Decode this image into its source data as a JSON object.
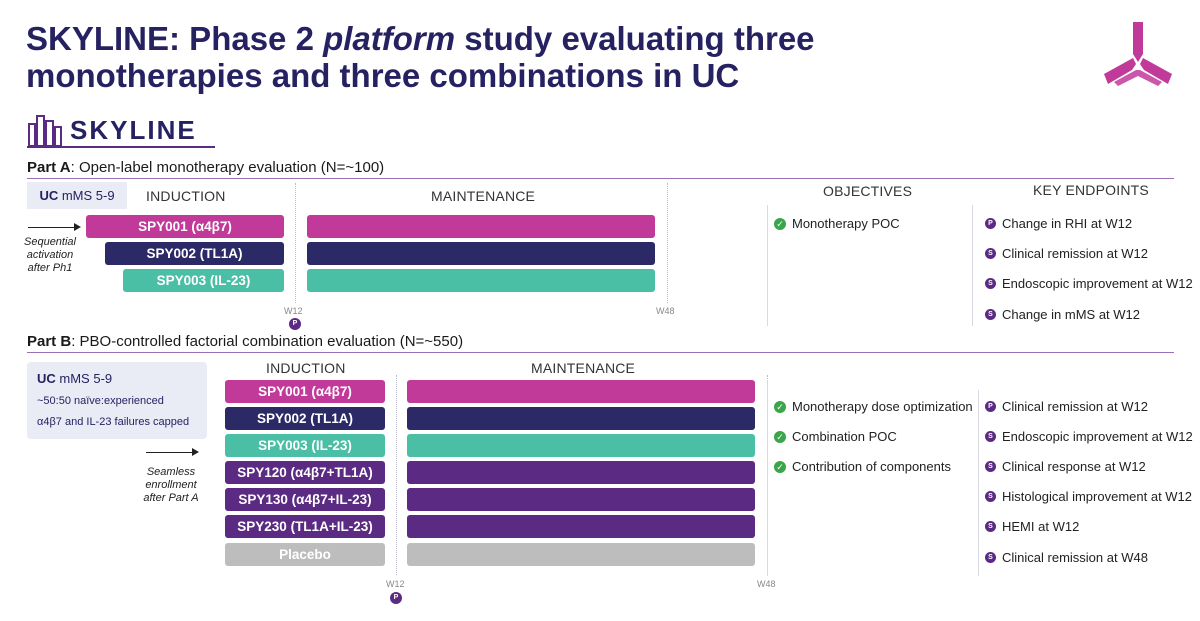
{
  "title": {
    "prefix": "SKYLINE: Phase 2 ",
    "italic": "platform",
    "suffix": " study evaluating three monotherapies and three combinations in UC"
  },
  "brand": {
    "study_logo_text": "SKYLINE"
  },
  "colors": {
    "magenta": "#c13a9a",
    "navy": "#2b2a66",
    "teal": "#4bbfa6",
    "purple": "#5b2a82",
    "gray": "#bdbdbd",
    "check": "#3aa64c"
  },
  "part_a": {
    "label_bold": "Part A",
    "label_rest": ": Open-label monotherapy evaluation (N=~100)",
    "uc_bold": "UC",
    "uc_rest": " mMS 5-9",
    "induction_header": "INDUCTION",
    "maintenance_header": "MAINTENANCE",
    "objectives_header": "OBJECTIVES",
    "endpoints_header": "KEY ENDPOINTS",
    "note": [
      "Sequential",
      "activation",
      "after Ph1"
    ],
    "arms": [
      {
        "label": "SPY001 (α4β7)",
        "color": "magenta"
      },
      {
        "label": "SPY002 (TL1A)",
        "color": "navy"
      },
      {
        "label": "SPY003 (IL-23)",
        "color": "teal"
      }
    ],
    "week_start": "W12",
    "week_end": "W48",
    "badge": "P",
    "objectives": [
      "Monotherapy POC"
    ],
    "endpoints": [
      {
        "badge": "P",
        "text": "Change in RHI at W12"
      },
      {
        "badge": "S",
        "text": "Clinical remission at W12"
      },
      {
        "badge": "S",
        "text": "Endoscopic improvement at W12"
      },
      {
        "badge": "S",
        "text": "Change in mMS at W12"
      }
    ]
  },
  "part_b": {
    "label_bold": "Part B",
    "label_rest": ": PBO-controlled factorial combination evaluation (N=~550)",
    "uc_bold": "UC",
    "uc_rest": " mMS 5-9",
    "uc_line2": "~50:50 naïve:experienced",
    "uc_line3": "α4β7 and IL-23 failures capped",
    "induction_header": "INDUCTION",
    "maintenance_header": "MAINTENANCE",
    "note": [
      "Seamless",
      "enrollment",
      "after Part A"
    ],
    "arms": [
      {
        "label": "SPY001 (α4β7)",
        "color": "magenta"
      },
      {
        "label": "SPY002 (TL1A)",
        "color": "navy"
      },
      {
        "label": "SPY003 (IL-23)",
        "color": "teal"
      },
      {
        "label": "SPY120 (α4β7+TL1A)",
        "color": "purple"
      },
      {
        "label": "SPY130 (α4β7+IL-23)",
        "color": "purple"
      },
      {
        "label": "SPY230 (TL1A+IL-23)",
        "color": "purple"
      },
      {
        "label": "Placebo",
        "color": "gray"
      }
    ],
    "week_start": "W12",
    "week_end": "W48",
    "badge": "P",
    "objectives": [
      "Monotherapy dose optimization",
      "Combination POC",
      "Contribution of components"
    ],
    "endpoints": [
      {
        "badge": "P",
        "text": "Clinical remission at W12"
      },
      {
        "badge": "S",
        "text": "Endoscopic improvement at W12"
      },
      {
        "badge": "S",
        "text": "Clinical response at W12"
      },
      {
        "badge": "S",
        "text": "Histological improvement at W12"
      },
      {
        "badge": "S",
        "text": "HEMI at W12"
      },
      {
        "badge": "S",
        "text": "Clinical remission at W48"
      }
    ]
  }
}
